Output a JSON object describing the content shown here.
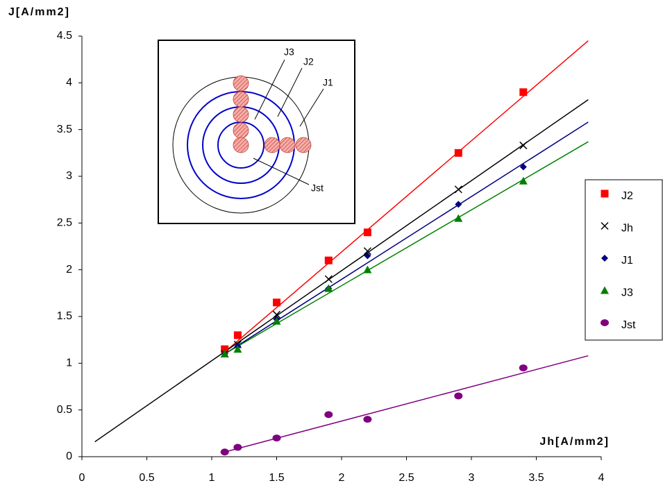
{
  "chart_data": {
    "type": "scatter",
    "ylabel": "J[A/mm2]",
    "xlabel": "Jh[A/mm2]",
    "x": [
      1.1,
      1.2,
      1.5,
      1.9,
      2.2,
      2.9,
      3.4
    ],
    "series": [
      {
        "name": "J2",
        "color": "#ff0000",
        "marker": "square",
        "values": [
          1.15,
          1.3,
          1.65,
          2.1,
          2.4,
          3.25,
          3.9
        ],
        "trendline": {
          "x": [
            1.1,
            3.9
          ],
          "y": [
            1.12,
            4.45
          ]
        }
      },
      {
        "name": "Jh",
        "color": "#000000",
        "marker": "cross",
        "values": [
          1.1,
          1.2,
          1.52,
          1.9,
          2.2,
          2.86,
          3.33
        ],
        "trendline": {
          "x": [
            0.1,
            3.9
          ],
          "y": [
            0.16,
            3.82
          ]
        }
      },
      {
        "name": "J1",
        "color": "#000080",
        "marker": "diamond",
        "values": [
          1.1,
          1.18,
          1.47,
          1.8,
          2.15,
          2.7,
          3.1
        ],
        "trendline": {
          "x": [
            1.1,
            3.9
          ],
          "y": [
            1.1,
            3.58
          ]
        }
      },
      {
        "name": "J3",
        "color": "#008000",
        "marker": "triangle",
        "values": [
          1.1,
          1.15,
          1.45,
          1.8,
          2.0,
          2.55,
          2.95
        ],
        "trendline": {
          "x": [
            1.1,
            3.9
          ],
          "y": [
            1.1,
            3.37
          ]
        }
      },
      {
        "name": "Jst",
        "color": "#800080",
        "marker": "circle",
        "values": [
          0.05,
          0.1,
          0.2,
          0.45,
          0.4,
          0.65,
          0.95
        ],
        "trendline": {
          "x": [
            1.1,
            3.9
          ],
          "y": [
            0.05,
            1.08
          ]
        }
      }
    ],
    "xlim": [
      0,
      4
    ],
    "ylim": [
      0,
      4.5
    ],
    "xticks": [
      0,
      0.5,
      1,
      1.5,
      2,
      2.5,
      3,
      3.5,
      4
    ],
    "yticks": [
      0,
      0.5,
      1,
      1.5,
      2,
      2.5,
      3,
      3.5,
      4,
      4.5
    ],
    "grid": false,
    "legend": "right",
    "inset": {
      "labels": [
        "J3",
        "J2",
        "J1",
        "Jst"
      ]
    }
  }
}
